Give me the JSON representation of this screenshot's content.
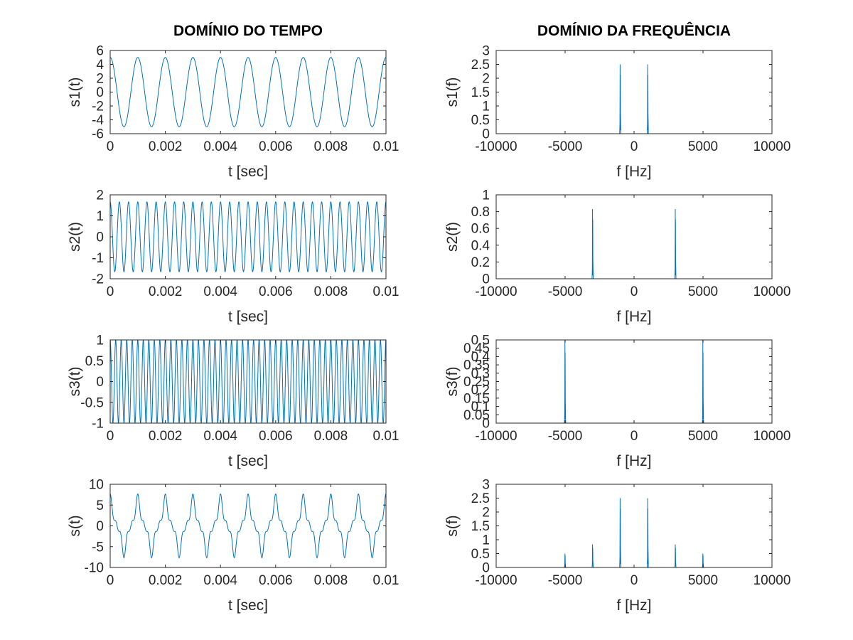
{
  "titles": {
    "time": "DOMÍNIO DO TEMPO",
    "freq": "DOMÍNIO DA FREQUÊNCIA"
  },
  "colors": {
    "line": "#0072bd",
    "axis": "#262626",
    "background": "#ffffff"
  },
  "chart_data": [
    {
      "type": "line",
      "id": "s1t",
      "column": "time",
      "row": 0,
      "ylabel": "s1(t)",
      "xlabel": "t [sec]",
      "xlim": [
        0,
        0.01
      ],
      "ylim": [
        -6,
        6
      ],
      "xticks": [
        0,
        0.002,
        0.004,
        0.006,
        0.008,
        0.01
      ],
      "xticklabels": [
        "0",
        "0.002",
        "0.004",
        "0.006",
        "0.008",
        "0.01"
      ],
      "yticks": [
        -6,
        -4,
        -2,
        0,
        2,
        4,
        6
      ],
      "yticklabels": [
        "-6",
        "-4",
        "-2",
        "0",
        "2",
        "4",
        "6"
      ],
      "signal": {
        "components": [
          {
            "amplitude": 5,
            "frequency": 1000
          }
        ]
      }
    },
    {
      "type": "line",
      "id": "s1f",
      "column": "freq",
      "row": 0,
      "ylabel": "s1(f)",
      "xlabel": "f [Hz]",
      "xlim": [
        -10000,
        10000
      ],
      "ylim": [
        0,
        3
      ],
      "xticks": [
        -10000,
        -5000,
        0,
        5000,
        10000
      ],
      "xticklabels": [
        "-10000",
        "-5000",
        "0",
        "5000",
        "10000"
      ],
      "yticks": [
        0,
        0.5,
        1,
        1.5,
        2,
        2.5,
        3
      ],
      "yticklabels": [
        "0",
        "0.5",
        "1",
        "1.5",
        "2",
        "2.5",
        "3"
      ],
      "peaks": [
        {
          "f": -1000,
          "magnitude": 2.5
        },
        {
          "f": 1000,
          "magnitude": 2.5
        }
      ]
    },
    {
      "type": "line",
      "id": "s2t",
      "column": "time",
      "row": 1,
      "ylabel": "s2(t)",
      "xlabel": "t [sec]",
      "xlim": [
        0,
        0.01
      ],
      "ylim": [
        -2,
        2
      ],
      "xticks": [
        0,
        0.002,
        0.004,
        0.006,
        0.008,
        0.01
      ],
      "xticklabels": [
        "0",
        "0.002",
        "0.004",
        "0.006",
        "0.008",
        "0.01"
      ],
      "yticks": [
        -2,
        -1,
        0,
        1,
        2
      ],
      "yticklabels": [
        "-2",
        "-1",
        "0",
        "1",
        "2"
      ],
      "signal": {
        "components": [
          {
            "amplitude": 1.667,
            "frequency": 3000
          }
        ]
      }
    },
    {
      "type": "line",
      "id": "s2f",
      "column": "freq",
      "row": 1,
      "ylabel": "s2(f)",
      "xlabel": "f [Hz]",
      "xlim": [
        -10000,
        10000
      ],
      "ylim": [
        0,
        1
      ],
      "xticks": [
        -10000,
        -5000,
        0,
        5000,
        10000
      ],
      "xticklabels": [
        "-10000",
        "-5000",
        "0",
        "5000",
        "10000"
      ],
      "yticks": [
        0,
        0.2,
        0.4,
        0.6,
        0.8,
        1
      ],
      "yticklabels": [
        "0",
        "0.2",
        "0.4",
        "0.6",
        "0.8",
        "1"
      ],
      "peaks": [
        {
          "f": -3000,
          "magnitude": 0.83
        },
        {
          "f": 3000,
          "magnitude": 0.83
        }
      ]
    },
    {
      "type": "line",
      "id": "s3t",
      "column": "time",
      "row": 2,
      "ylabel": "s3(t)",
      "xlabel": "t [sec]",
      "xlim": [
        0,
        0.01
      ],
      "ylim": [
        -1,
        1
      ],
      "xticks": [
        0,
        0.002,
        0.004,
        0.006,
        0.008,
        0.01
      ],
      "xticklabels": [
        "0",
        "0.002",
        "0.004",
        "0.006",
        "0.008",
        "0.01"
      ],
      "yticks": [
        -1,
        -0.5,
        0,
        0.5,
        1
      ],
      "yticklabels": [
        "-1",
        "-0.5",
        "0",
        "0.5",
        "1"
      ],
      "signal": {
        "components": [
          {
            "amplitude": 1,
            "frequency": 5000
          }
        ]
      }
    },
    {
      "type": "line",
      "id": "s3f",
      "column": "freq",
      "row": 2,
      "ylabel": "s3(f)",
      "xlabel": "f [Hz]",
      "xlim": [
        -10000,
        10000
      ],
      "ylim": [
        0,
        0.5
      ],
      "xticks": [
        -10000,
        -5000,
        0,
        5000,
        10000
      ],
      "xticklabels": [
        "-10000",
        "-5000",
        "0",
        "5000",
        "10000"
      ],
      "yticks": [
        0,
        0.05,
        0.1,
        0.15,
        0.2,
        0.25,
        0.3,
        0.35,
        0.4,
        0.45,
        0.5
      ],
      "yticklabels": [
        "0",
        "0.05",
        "0.1",
        "0.15",
        "0.2",
        "0.25",
        "0.3",
        "0.35",
        "0.4",
        "0.45",
        "0.5"
      ],
      "peaks": [
        {
          "f": -5000,
          "magnitude": 0.5
        },
        {
          "f": 5000,
          "magnitude": 0.5
        }
      ]
    },
    {
      "type": "line",
      "id": "st",
      "column": "time",
      "row": 3,
      "ylabel": "s(t)",
      "xlabel": "t [sec]",
      "xlim": [
        0,
        0.01
      ],
      "ylim": [
        -10,
        10
      ],
      "xticks": [
        0,
        0.002,
        0.004,
        0.006,
        0.008,
        0.01
      ],
      "xticklabels": [
        "0",
        "0.002",
        "0.004",
        "0.006",
        "0.008",
        "0.01"
      ],
      "yticks": [
        -10,
        -5,
        0,
        5,
        10
      ],
      "yticklabels": [
        "-10",
        "-5",
        "0",
        "5",
        "10"
      ],
      "signal": {
        "components": [
          {
            "amplitude": 5,
            "frequency": 1000
          },
          {
            "amplitude": 1.667,
            "frequency": 3000
          },
          {
            "amplitude": 1,
            "frequency": 5000
          }
        ]
      }
    },
    {
      "type": "line",
      "id": "sf",
      "column": "freq",
      "row": 3,
      "ylabel": "s(f)",
      "xlabel": "f [Hz]",
      "xlim": [
        -10000,
        10000
      ],
      "ylim": [
        0,
        3
      ],
      "xticks": [
        -10000,
        -5000,
        0,
        5000,
        10000
      ],
      "xticklabels": [
        "-10000",
        "-5000",
        "0",
        "5000",
        "10000"
      ],
      "yticks": [
        0,
        0.5,
        1,
        1.5,
        2,
        2.5,
        3
      ],
      "yticklabels": [
        "0",
        "0.5",
        "1",
        "1.5",
        "2",
        "2.5",
        "3"
      ],
      "peaks": [
        {
          "f": -5000,
          "magnitude": 0.5
        },
        {
          "f": -3000,
          "magnitude": 0.83
        },
        {
          "f": -1000,
          "magnitude": 2.5
        },
        {
          "f": 1000,
          "magnitude": 2.5
        },
        {
          "f": 3000,
          "magnitude": 0.83
        },
        {
          "f": 5000,
          "magnitude": 0.5
        }
      ]
    }
  ]
}
